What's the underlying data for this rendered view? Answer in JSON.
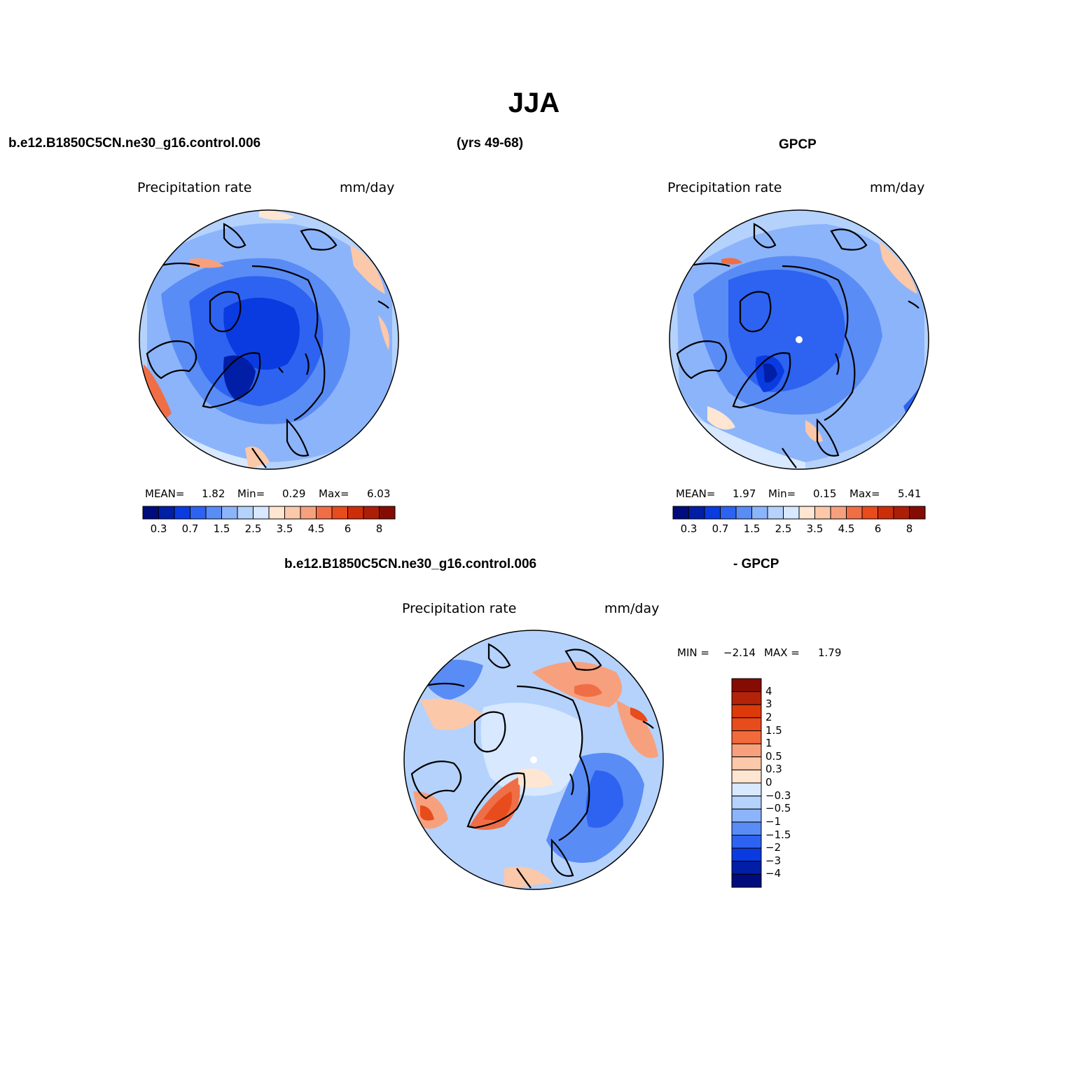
{
  "figure": {
    "title": "JJA",
    "top_left_case": "b.e12.B1850C5CN.ne30_g16.control.006",
    "top_years": "(yrs 49-68)",
    "top_right_obs": "GPCP",
    "diff_case": "b.e12.B1850C5CN.ne30_g16.control.006",
    "diff_obs": "- GPCP"
  },
  "panels": {
    "model": {
      "variable": "Precipitation rate",
      "units": "mm/day",
      "mean_label": "MEAN=",
      "mean": "1.82",
      "min_label": "Min=",
      "min": "0.29",
      "max_label": "Max=",
      "max": "6.03"
    },
    "obs": {
      "variable": "Precipitation rate",
      "units": "mm/day",
      "mean_label": "MEAN=",
      "mean": "1.97",
      "min_label": "Min=",
      "min": "0.15",
      "max_label": "Max=",
      "max": "5.41"
    },
    "diff": {
      "variable": "Precipitation rate",
      "units": "mm/day",
      "min_label": "MIN =",
      "min": "−2.14",
      "max_label": "MAX =",
      "max": "1.79"
    }
  },
  "colorbars": {
    "abs": {
      "colors": [
        "#000c7d",
        "#001ea6",
        "#0a3be0",
        "#2d63f0",
        "#5a8cf5",
        "#8cb4fa",
        "#b4d2fc",
        "#d7e8ff",
        "#ffe6d2",
        "#fcc8aa",
        "#f7a07d",
        "#f06e46",
        "#e84b1c",
        "#cc2e0a",
        "#ad1e08",
        "#850c03"
      ],
      "tick_labels": [
        "0.3",
        "0.7",
        "1.5",
        "2.5",
        "3.5",
        "4.5",
        "6",
        "8"
      ]
    },
    "diff": {
      "colors_top_to_bottom": [
        "#850c03",
        "#b3230a",
        "#dd3a0a",
        "#e84b1c",
        "#f26a3c",
        "#f7a07d",
        "#fcc8aa",
        "#ffe6d2",
        "#d7e8ff",
        "#b4d2fc",
        "#8cb4fa",
        "#5a8cf5",
        "#2d63f0",
        "#0a3be0",
        "#001ea6",
        "#000c7d"
      ],
      "tick_labels": [
        "4",
        "3",
        "2",
        "1.5",
        "1",
        "0.5",
        "0.3",
        "0",
        "−0.3",
        "−0.5",
        "−1",
        "−1.5",
        "−2",
        "−3",
        "−4"
      ]
    }
  },
  "colors": {
    "map_background_light": "#d7e8ff",
    "map_mid_blue": "#5a8cf5",
    "map_deep_blue": "#0a3be0",
    "map_warm": "#f7a07d",
    "coastline": "#000000"
  }
}
